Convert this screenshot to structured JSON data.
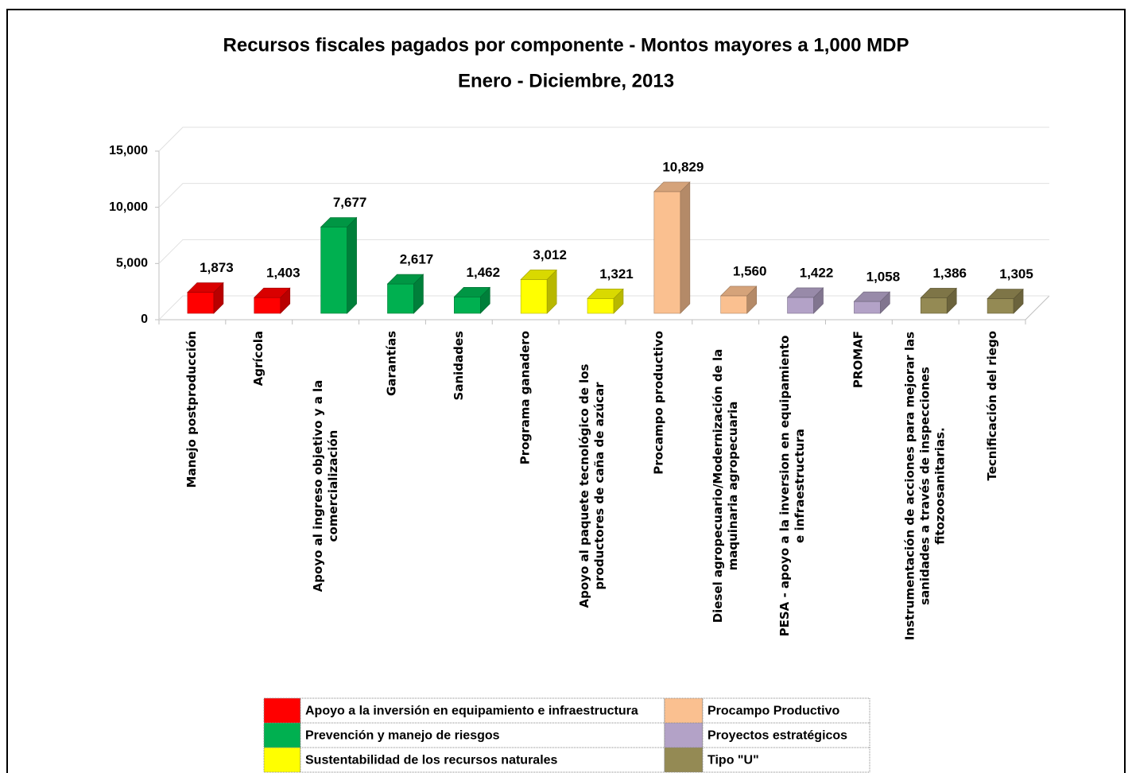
{
  "chart_data": {
    "type": "bar3d",
    "title": "Recursos fiscales pagados por componente - Montos mayores a 1,000 MDP",
    "subtitle": "Enero - Diciembre, 2013",
    "categories": [
      "Manejo postproducción",
      "Agrícola",
      "Apoyo al ingreso objetivo y a la comercialización",
      "Garantías",
      "Sanidades",
      "Programa ganadero",
      "Apoyo al paquete tecnológico de los productores de caña de azúcar",
      "Procampo productivo",
      "Diesel agropecuario/Modernización de la maquinaria agropecuaria",
      "PESA - apoyo a la inversion en equipamiento e infraestructura",
      "PROMAF",
      "Instrumentación de acciones para mejorar las sanidades a través de inspecciones fitozoosanitarias.",
      "Tecnificación del riego"
    ],
    "series": [
      {
        "name": "Apoyo a la inversión en equipamiento e infraestructura",
        "color": "#ff0000",
        "values": [
          1873,
          1403,
          null,
          null,
          null,
          null,
          null,
          null,
          null,
          null,
          null,
          null,
          null
        ],
        "value_labels": [
          "1,873",
          "1,403",
          null,
          null,
          null,
          null,
          null,
          null,
          null,
          null,
          null,
          null,
          null
        ]
      },
      {
        "name": "Prevención y manejo de riesgos",
        "color": "#00b050",
        "values": [
          null,
          null,
          7677,
          2617,
          1462,
          null,
          null,
          null,
          null,
          null,
          null,
          null,
          null
        ],
        "value_labels": [
          null,
          null,
          "7,677",
          "2,617",
          "1,462",
          null,
          null,
          null,
          null,
          null,
          null,
          null,
          null
        ]
      },
      {
        "name": "Sustentabilidad de los recursos naturales",
        "color": "#ffff00",
        "values": [
          null,
          null,
          null,
          null,
          null,
          3012,
          1321,
          null,
          null,
          null,
          null,
          null,
          null
        ],
        "value_labels": [
          null,
          null,
          null,
          null,
          null,
          "3,012",
          "1,321",
          null,
          null,
          null,
          null,
          null,
          null
        ]
      },
      {
        "name": "Procampo Productivo",
        "color": "#fac090",
        "values": [
          null,
          null,
          null,
          null,
          null,
          null,
          null,
          10829,
          1560,
          null,
          null,
          null,
          null
        ],
        "value_labels": [
          null,
          null,
          null,
          null,
          null,
          null,
          null,
          "10,829",
          "1,560",
          null,
          null,
          null,
          null
        ]
      },
      {
        "name": "Proyectos estratégicos",
        "color": "#b3a2c7",
        "values": [
          null,
          null,
          null,
          null,
          null,
          null,
          null,
          null,
          null,
          1422,
          1058,
          null,
          null
        ],
        "value_labels": [
          null,
          null,
          null,
          null,
          null,
          null,
          null,
          null,
          null,
          "1,422",
          "1,058",
          null,
          null
        ]
      },
      {
        "name": "Tipo \"U\"",
        "color": "#948a54",
        "values": [
          null,
          null,
          null,
          null,
          null,
          null,
          null,
          null,
          null,
          null,
          null,
          1386,
          1305
        ],
        "value_labels": [
          null,
          null,
          null,
          null,
          null,
          null,
          null,
          null,
          null,
          null,
          null,
          "1,386",
          "1,305"
        ]
      }
    ],
    "ylim": [
      0,
      15000
    ],
    "yticks": [
      0,
      {
        "value": 5000,
        "label": "5,000"
      },
      {
        "value": 10000,
        "label": "10,000"
      },
      {
        "value": 15000,
        "label": "15,000"
      }
    ],
    "grid": true
  }
}
